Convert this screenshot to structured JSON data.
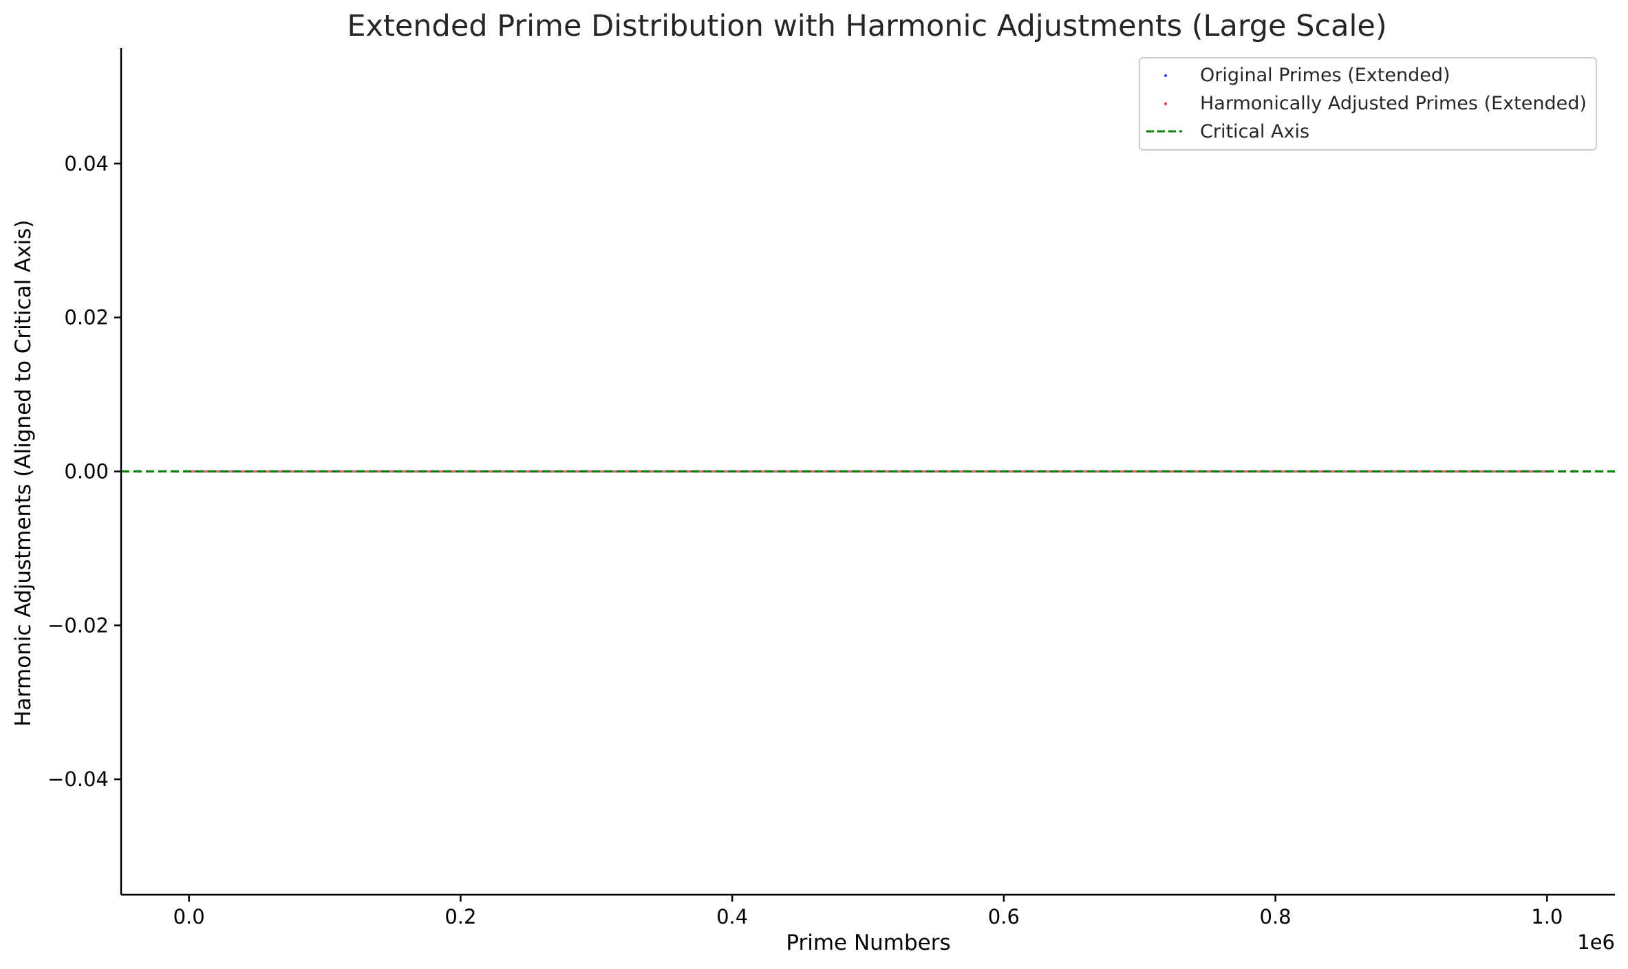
{
  "chart_data": {
    "type": "scatter",
    "title": "Extended Prime Distribution with Harmonic Adjustments (Large Scale)",
    "xlabel": "Prime Numbers",
    "ylabel": "Harmonic Adjustments (Aligned to Critical Axis)",
    "x_offset_label": "1e6",
    "xlim": [
      -50000,
      1050000
    ],
    "ylim": [
      -0.055,
      0.055
    ],
    "x_ticks": [
      0,
      200000,
      400000,
      600000,
      800000,
      1000000
    ],
    "x_tick_labels": [
      "0.0",
      "0.2",
      "0.4",
      "0.6",
      "0.8",
      "1.0"
    ],
    "y_ticks": [
      -0.04,
      -0.02,
      0.0,
      0.02,
      0.04
    ],
    "y_tick_labels": [
      "−0.04",
      "−0.02",
      "0.00",
      "0.02",
      "0.04"
    ],
    "grid": false,
    "legend_position": "top-right",
    "series": [
      {
        "name": "Original Primes (Extended)",
        "kind": "scatter",
        "color": "#4040ff",
        "x_range": [
          2,
          999983
        ],
        "y_constant": 0.0
      },
      {
        "name": "Harmonically Adjusted Primes (Extended)",
        "kind": "scatter",
        "color": "#ff4040",
        "x_range": [
          2,
          999983
        ],
        "y_constant": 0.0
      },
      {
        "name": "Critical Axis",
        "kind": "hline",
        "color": "#008000",
        "linestyle": "dashed",
        "y": 0.0
      }
    ]
  }
}
